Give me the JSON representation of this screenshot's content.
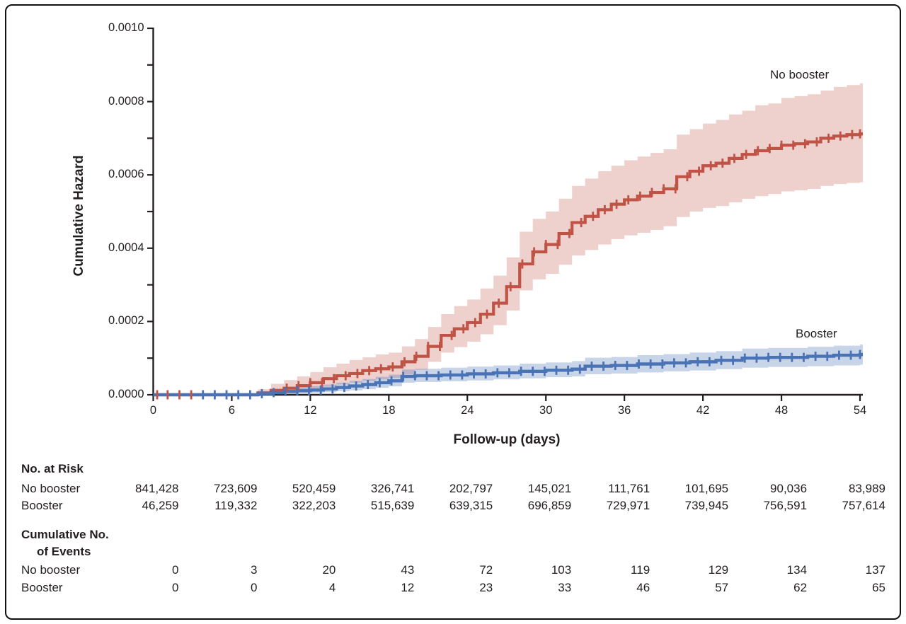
{
  "chart_data": {
    "type": "line",
    "subtype": "step-cumulative-hazard-with-confidence-bands",
    "title": "",
    "xlabel": "Follow-up (days)",
    "ylabel": "Cumulative Hazard",
    "xlim": [
      0,
      54
    ],
    "ylim": [
      0,
      0.001
    ],
    "grid": false,
    "xticks": [
      0,
      6,
      12,
      18,
      24,
      30,
      36,
      42,
      48,
      54
    ],
    "ytick_values_e4": [
      0,
      2,
      4,
      6,
      8,
      10
    ],
    "ytick_labels": [
      "0.0000",
      "0.0002",
      "0.0004",
      "0.0006",
      "0.0008",
      "0.0010"
    ],
    "minor_ytick_step_e4": 1,
    "value_unit": "values, lower and upper are in units of 1e-4 cumulative hazard",
    "series": [
      {
        "name": "No booster",
        "color": "#bf5345",
        "band_color": "rgba(191,83,69,0.27)",
        "days": [
          0,
          3,
          8,
          9,
          10,
          11,
          12,
          13,
          14,
          15,
          16,
          17,
          18,
          19,
          20,
          21,
          22,
          23,
          24,
          25,
          26,
          27,
          28,
          29,
          30,
          31,
          32,
          33,
          34,
          35,
          36,
          37,
          38,
          39,
          40,
          41,
          42,
          43,
          44,
          45,
          46,
          47,
          48,
          49,
          50,
          51,
          52,
          53,
          54
        ],
        "values": [
          0,
          0,
          0.05,
          0.12,
          0.18,
          0.25,
          0.33,
          0.44,
          0.52,
          0.58,
          0.66,
          0.71,
          0.76,
          0.9,
          1.05,
          1.32,
          1.62,
          1.8,
          1.97,
          2.2,
          2.5,
          2.95,
          3.57,
          3.9,
          4.1,
          4.4,
          4.7,
          4.87,
          5.05,
          5.2,
          5.32,
          5.42,
          5.52,
          5.62,
          5.95,
          6.1,
          6.25,
          6.32,
          6.45,
          6.56,
          6.66,
          6.72,
          6.81,
          6.85,
          6.9,
          7.0,
          7.06,
          7.1,
          7.12
        ],
        "lower": [
          0,
          0,
          0,
          0.02,
          0.05,
          0.1,
          0.15,
          0.22,
          0.28,
          0.33,
          0.38,
          0.42,
          0.46,
          0.56,
          0.68,
          0.9,
          1.15,
          1.3,
          1.45,
          1.65,
          1.9,
          2.3,
          2.85,
          3.15,
          3.3,
          3.55,
          3.8,
          3.95,
          4.1,
          4.25,
          4.35,
          4.42,
          4.5,
          4.6,
          4.85,
          5.0,
          5.1,
          5.15,
          5.25,
          5.35,
          5.42,
          5.48,
          5.55,
          5.58,
          5.62,
          5.7,
          5.75,
          5.78,
          5.8
        ],
        "upper": [
          0,
          0,
          0.15,
          0.3,
          0.4,
          0.5,
          0.62,
          0.75,
          0.85,
          0.95,
          1.02,
          1.1,
          1.15,
          1.32,
          1.52,
          1.85,
          2.2,
          2.42,
          2.6,
          2.9,
          3.25,
          3.75,
          4.45,
          4.8,
          5.0,
          5.35,
          5.7,
          5.9,
          6.1,
          6.25,
          6.4,
          6.5,
          6.6,
          6.7,
          7.1,
          7.25,
          7.4,
          7.5,
          7.65,
          7.75,
          7.9,
          7.95,
          8.1,
          8.15,
          8.2,
          8.3,
          8.4,
          8.45,
          8.5
        ],
        "censor_days": [
          0.3,
          1.1,
          2.0,
          2.9,
          10.2,
          11.1,
          12.0,
          12.9,
          13.8,
          14.7,
          15.6,
          16.5,
          17.4,
          18.3,
          19.2,
          20.1,
          21.0,
          21.9,
          22.8,
          23.7,
          24.6,
          25.5,
          26.4,
          27.3,
          28.2,
          29.1,
          30.0,
          30.9,
          31.8,
          32.7,
          33.6,
          34.5,
          35.4,
          36.3,
          37.2,
          38.1,
          39.0,
          39.9,
          40.8,
          41.7,
          42.6,
          43.5,
          44.4,
          45.3,
          46.2,
          47.1,
          48.0,
          48.9,
          49.8,
          50.7,
          51.6,
          52.5,
          53.4,
          54.0
        ]
      },
      {
        "name": "Booster",
        "color": "#4a73b6",
        "band_color": "rgba(74,115,182,0.30)",
        "days": [
          0,
          3,
          8,
          9,
          10,
          11,
          12,
          13,
          14,
          15,
          16,
          17,
          18,
          19,
          20,
          22,
          24,
          26,
          28,
          30,
          32,
          33,
          35,
          37,
          39,
          41,
          43,
          45,
          47,
          50,
          52,
          54
        ],
        "values": [
          0,
          0,
          0.03,
          0.06,
          0.09,
          0.11,
          0.13,
          0.16,
          0.2,
          0.24,
          0.28,
          0.33,
          0.38,
          0.5,
          0.52,
          0.54,
          0.57,
          0.6,
          0.64,
          0.67,
          0.7,
          0.78,
          0.8,
          0.84,
          0.87,
          0.9,
          0.94,
          1.0,
          1.02,
          1.05,
          1.08,
          1.1
        ],
        "lower": [
          0,
          0,
          0,
          0.01,
          0.03,
          0.04,
          0.05,
          0.07,
          0.1,
          0.12,
          0.15,
          0.19,
          0.23,
          0.33,
          0.35,
          0.37,
          0.39,
          0.42,
          0.45,
          0.48,
          0.5,
          0.56,
          0.58,
          0.61,
          0.64,
          0.66,
          0.7,
          0.74,
          0.76,
          0.78,
          0.8,
          0.82
        ],
        "upper": [
          0,
          0,
          0.1,
          0.14,
          0.18,
          0.21,
          0.24,
          0.28,
          0.33,
          0.38,
          0.43,
          0.49,
          0.55,
          0.69,
          0.71,
          0.74,
          0.77,
          0.8,
          0.85,
          0.88,
          0.92,
          1.01,
          1.03,
          1.08,
          1.11,
          1.15,
          1.19,
          1.26,
          1.28,
          1.31,
          1.34,
          1.37
        ],
        "censor_days": [
          3.8,
          4.7,
          5.6,
          6.5,
          7.4,
          8.3,
          9.2,
          10.1,
          11.0,
          11.9,
          12.8,
          13.7,
          14.6,
          15.5,
          16.4,
          17.3,
          18.2,
          19.1,
          20.0,
          20.9,
          21.8,
          22.7,
          23.6,
          24.5,
          25.4,
          26.3,
          27.2,
          28.1,
          29.0,
          29.9,
          30.8,
          31.7,
          32.6,
          33.5,
          34.4,
          35.3,
          36.2,
          37.1,
          38.0,
          38.9,
          39.8,
          40.7,
          41.6,
          42.5,
          43.4,
          44.3,
          45.2,
          46.1,
          47.0,
          47.9,
          48.8,
          49.7,
          50.6,
          51.5,
          52.4,
          53.3,
          54.0
        ]
      }
    ],
    "curve_labels": {
      "no_booster": "No booster",
      "booster": "Booster"
    },
    "axis_color": "#231f20"
  },
  "risk_table": {
    "header": "No. at Risk",
    "rows": [
      {
        "label": "No booster",
        "values": [
          "841,428",
          "723,609",
          "520,459",
          "326,741",
          "202,797",
          "145,021",
          "111,761",
          "101,695",
          "90,036",
          "83,989"
        ]
      },
      {
        "label": "Booster",
        "values": [
          "46,259",
          "119,332",
          "322,203",
          "515,639",
          "639,315",
          "696,859",
          "729,971",
          "739,945",
          "756,591",
          "757,614"
        ]
      }
    ],
    "events_header_line1": "Cumulative No.",
    "events_header_line2": "of Events",
    "events_rows": [
      {
        "label": "No booster",
        "values": [
          "0",
          "3",
          "20",
          "43",
          "72",
          "103",
          "119",
          "129",
          "134",
          "137"
        ]
      },
      {
        "label": "Booster",
        "values": [
          "0",
          "0",
          "4",
          "12",
          "23",
          "33",
          "46",
          "57",
          "62",
          "65"
        ]
      }
    ]
  }
}
